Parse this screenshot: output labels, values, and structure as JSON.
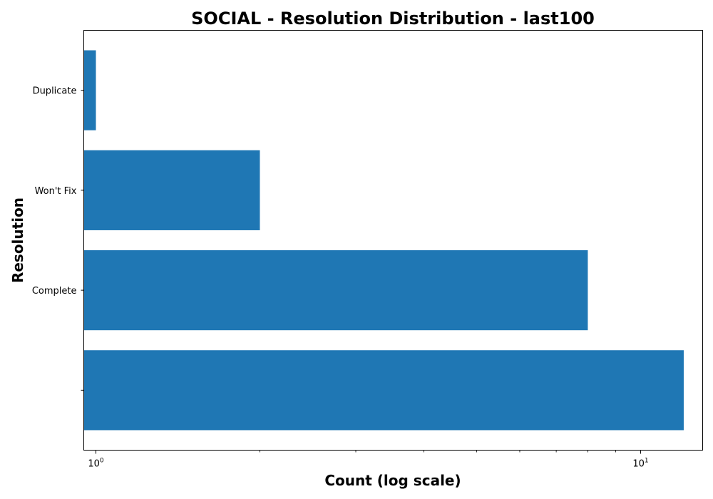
{
  "chart_data": {
    "type": "bar",
    "orientation": "horizontal",
    "title": "SOCIAL - Resolution Distribution - last100",
    "xlabel": "Count (log scale)",
    "ylabel": "Resolution",
    "x_scale": "log",
    "xlim": [
      0.95,
      13
    ],
    "x_ticks": [
      {
        "value": 1,
        "base": "10",
        "exp": "0"
      },
      {
        "value": 10,
        "base": "10",
        "exp": "1"
      }
    ],
    "categories": [
      "",
      "Complete",
      "Won't Fix",
      "Duplicate"
    ],
    "values": [
      12,
      8,
      2,
      1
    ],
    "bar_color": "#1f77b4",
    "grid": false,
    "legend": "none"
  }
}
